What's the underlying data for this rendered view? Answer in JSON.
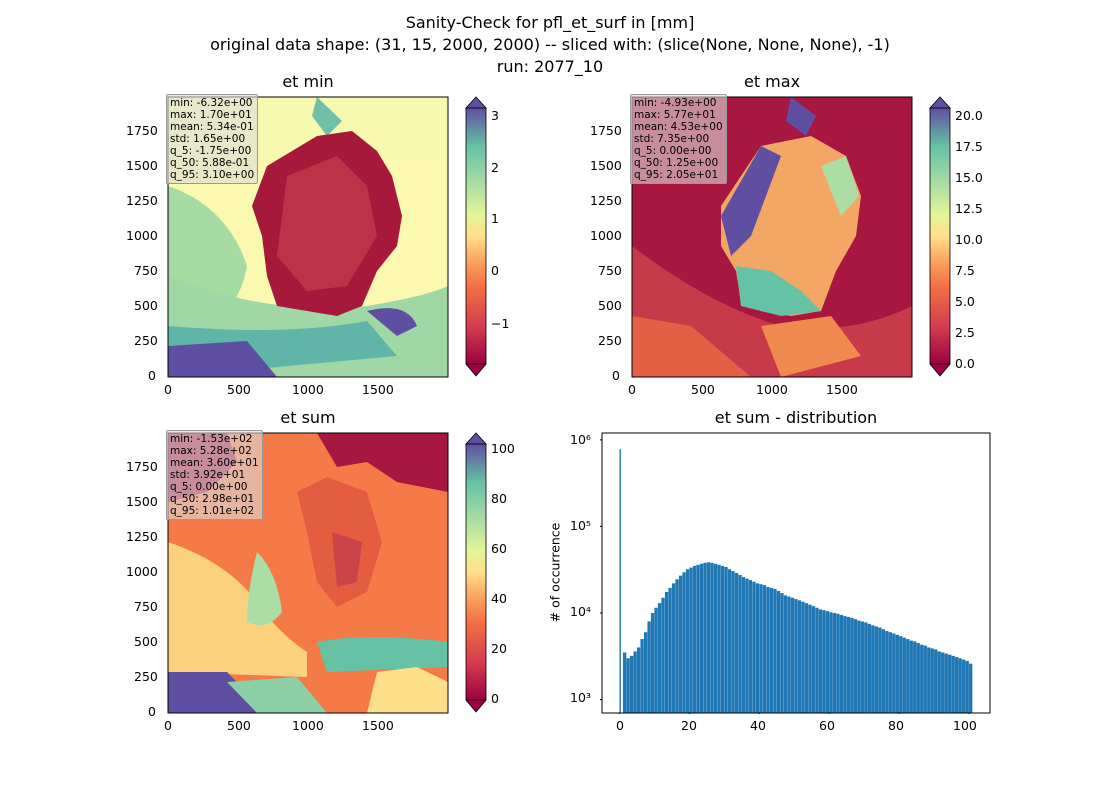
{
  "figure": {
    "title_lines": [
      "Sanity-Check for pfl_et_surf in [mm]",
      "original data shape: (31, 15, 2000, 2000) -- sliced with: (slice(None, None, None), -1)",
      "run: 2077_10"
    ]
  },
  "panels": {
    "et_min": {
      "title": "et min",
      "stats": [
        "min: -6.32e+00",
        "max: 1.70e+01",
        "mean: 5.34e-01",
        "std: 1.65e+00",
        "q_5: -1.75e+00",
        "q_50: 5.88e-01",
        "q_95: 3.10e+00"
      ],
      "x_ticks": [
        "0",
        "500",
        "1000",
        "1500"
      ],
      "y_ticks": [
        "0",
        "250",
        "500",
        "750",
        "1000",
        "1250",
        "1500",
        "1750"
      ],
      "colorbar_ticks": [
        "3",
        "2",
        "1",
        "0",
        "−1"
      ]
    },
    "et_max": {
      "title": "et max",
      "stats": [
        "min: -4.93e+00",
        "max: 5.77e+01",
        "mean: 4.53e+00",
        "std: 7.35e+00",
        "q_5: 0.00e+00",
        "q_50: 1.25e+00",
        "q_95: 2.05e+01"
      ],
      "x_ticks": [
        "0",
        "500",
        "1000",
        "1500"
      ],
      "y_ticks": [
        "0",
        "250",
        "500",
        "750",
        "1000",
        "1250",
        "1500",
        "1750"
      ],
      "colorbar_ticks": [
        "20.0",
        "17.5",
        "15.0",
        "12.5",
        "10.0",
        "7.5",
        "5.0",
        "2.5",
        "0.0"
      ]
    },
    "et_sum": {
      "title": "et sum",
      "stats": [
        "min: -1.53e+02",
        "max: 5.28e+02",
        "mean: 3.60e+01",
        "std: 3.92e+01",
        "q_5: 0.00e+00",
        "q_50: 2.98e+01",
        "q_95: 1.01e+02"
      ],
      "x_ticks": [
        "0",
        "500",
        "1000",
        "1500"
      ],
      "y_ticks": [
        "0",
        "250",
        "500",
        "750",
        "1000",
        "1250",
        "1500",
        "1750"
      ],
      "colorbar_ticks": [
        "100",
        "80",
        "60",
        "40",
        "20",
        "0"
      ]
    },
    "hist": {
      "title": "et sum - distribution",
      "ylabel": "# of occurrence",
      "x_ticks": [
        "0",
        "20",
        "40",
        "60",
        "80",
        "100"
      ],
      "y_ticks": [
        "10³",
        "10⁴",
        "10⁵",
        "10⁶"
      ]
    }
  },
  "colors": {
    "colormap": "Spectral",
    "hist_bar": "#1f77b4"
  },
  "chart_data": [
    {
      "type": "heatmap",
      "title": "et min",
      "xlim": [
        0,
        2000
      ],
      "ylim": [
        0,
        2000
      ],
      "colorbar_range": [
        -2,
        3.2
      ],
      "colorbar_ticks": [
        -1,
        0,
        1,
        2,
        3
      ],
      "colormap": "Spectral"
    },
    {
      "type": "heatmap",
      "title": "et max",
      "xlim": [
        0,
        2000
      ],
      "ylim": [
        0,
        2000
      ],
      "colorbar_range": [
        0,
        21
      ],
      "colorbar_ticks": [
        0,
        2.5,
        5,
        7.5,
        10,
        12.5,
        15,
        17.5,
        20
      ],
      "colormap": "Spectral"
    },
    {
      "type": "heatmap",
      "title": "et sum",
      "xlim": [
        0,
        2000
      ],
      "ylim": [
        0,
        2000
      ],
      "colorbar_range": [
        -3,
        105
      ],
      "colorbar_ticks": [
        0,
        20,
        40,
        60,
        80,
        100
      ],
      "colormap": "Spectral"
    },
    {
      "type": "bar",
      "title": "et sum - distribution",
      "ylabel": "# of occurrence",
      "xlim": [
        -5,
        106
      ],
      "ylim": [
        700,
        1200000
      ],
      "yscale": "log",
      "grid": false,
      "x": [
        0,
        1,
        2,
        3,
        4,
        5,
        6,
        7,
        8,
        9,
        10,
        11,
        12,
        13,
        14,
        15,
        16,
        17,
        18,
        19,
        20,
        21,
        22,
        23,
        24,
        25,
        26,
        27,
        28,
        29,
        30,
        31,
        32,
        33,
        34,
        35,
        36,
        37,
        38,
        39,
        40,
        41,
        42,
        43,
        44,
        45,
        46,
        47,
        48,
        49,
        50,
        51,
        52,
        53,
        54,
        55,
        56,
        57,
        58,
        59,
        60,
        61,
        62,
        63,
        64,
        65,
        66,
        67,
        68,
        69,
        70,
        71,
        72,
        73,
        74,
        75,
        76,
        77,
        78,
        79,
        80,
        81,
        82,
        83,
        84,
        85,
        86,
        87,
        88,
        89,
        90,
        91,
        92,
        93,
        94,
        95,
        96,
        97,
        98,
        99,
        100
      ],
      "values": [
        780000,
        3500,
        3000,
        3200,
        3600,
        4000,
        5000,
        6000,
        8000,
        10000,
        11500,
        13000,
        15000,
        17500,
        19500,
        22000,
        24500,
        27000,
        29500,
        32000,
        33500,
        35000,
        36000,
        37000,
        38000,
        38500,
        38000,
        37000,
        36000,
        35000,
        34000,
        32000,
        30500,
        29000,
        27500,
        26000,
        25000,
        24000,
        23000,
        22000,
        21500,
        21000,
        20000,
        19500,
        19000,
        18000,
        17000,
        16000,
        15500,
        15000,
        14500,
        14000,
        13500,
        13000,
        12500,
        12000,
        11500,
        11000,
        10800,
        10500,
        10200,
        10000,
        9800,
        9500,
        9200,
        9000,
        8800,
        8500,
        8200,
        8000,
        7800,
        7500,
        7200,
        7000,
        6800,
        6500,
        6200,
        6000,
        5800,
        5600,
        5400,
        5200,
        5000,
        4800,
        4700,
        4500,
        4300,
        4200,
        4000,
        3900,
        3800,
        3600,
        3500,
        3400,
        3300,
        3200,
        3100,
        3000,
        2900,
        2800,
        2600
      ]
    }
  ]
}
